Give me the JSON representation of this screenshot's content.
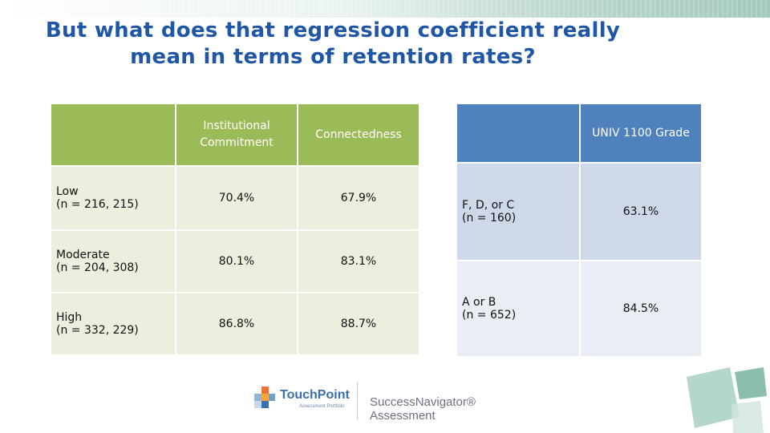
{
  "slide": {
    "title_line1": "But what does that regression coefficient really",
    "title_line2": "mean in terms of retention rates?"
  },
  "commitment_table": {
    "corner": "",
    "columns": [
      "Institutional Commitment",
      "Connectedness"
    ],
    "rows": [
      {
        "label_line1": "Low",
        "label_line2": "(n = 216, 215)",
        "values": [
          "70.4%",
          "67.9%"
        ]
      },
      {
        "label_line1": "Moderate",
        "label_line2": "(n = 204, 308)",
        "values": [
          "80.1%",
          "83.1%"
        ]
      },
      {
        "label_line1": "High",
        "label_line2": "(n = 332, 229)",
        "values": [
          "86.8%",
          "88.7%"
        ]
      }
    ]
  },
  "grade_table": {
    "corner": "",
    "column": "UNIV 1100 Grade",
    "rows": [
      {
        "label_line1": "F, D, or C",
        "label_line2": "(n = 160)",
        "value": "63.1%"
      },
      {
        "label_line1": "A or B",
        "label_line2": "(n = 652)",
        "value": "84.5%"
      }
    ]
  },
  "footer": {
    "touchpoint_name": "TouchPoint",
    "touchpoint_sub": "Assessment Portfolio",
    "navigator_name": "SuccessNavigator® Assessment"
  },
  "colors": {
    "title": "#1f57a6",
    "green_header": "#9bbb59",
    "green_cell": "#ebf0de",
    "blue_header": "#4f81bd",
    "blue_cell_1": "#cfd8e8",
    "blue_cell_2": "#e9edf4"
  }
}
